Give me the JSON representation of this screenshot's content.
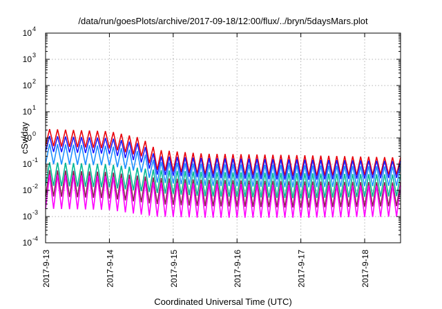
{
  "chart_data": {
    "type": "line",
    "title": "/data/run/goesPlots/archive/2017-09-18/12:00/flux/../bryn/5daysMars.plot",
    "xlabel": "Coordinated Universal Time (UTC)",
    "ylabel": "cSv/day",
    "y_scale": "log",
    "ylim": [
      0.0001,
      10000
    ],
    "xlim": [
      "2017-09-13",
      "2017-09-18T13:30"
    ],
    "grid": true,
    "legend": "none",
    "x_ticks": [
      {
        "label": "2017-9-13",
        "date": "2017-09-13"
      },
      {
        "label": "2017-9-14",
        "date": "2017-09-14"
      },
      {
        "label": "2017-9-15",
        "date": "2017-09-15"
      },
      {
        "label": "2017-9-16",
        "date": "2017-09-16"
      },
      {
        "label": "2017-9-17",
        "date": "2017-09-17"
      },
      {
        "label": "2017-9-18",
        "date": "2017-09-18"
      }
    ],
    "y_ticks": [
      {
        "base": "10",
        "exp": "-4",
        "value": 0.0001
      },
      {
        "base": "10",
        "exp": "-3",
        "value": 0.001
      },
      {
        "base": "10",
        "exp": "-2",
        "value": 0.01
      },
      {
        "base": "10",
        "exp": "-1",
        "value": 0.1
      },
      {
        "base": "10",
        "exp": "0",
        "value": 1
      },
      {
        "base": "10",
        "exp": "1",
        "value": 10
      },
      {
        "base": "10",
        "exp": "2",
        "value": 100
      },
      {
        "base": "10",
        "exp": "3",
        "value": 1000
      },
      {
        "base": "10",
        "exp": "4",
        "value": 10000
      }
    ],
    "oscillation_period_hours": 3.0,
    "series": [
      {
        "color": "#e8000b",
        "envelope": [
          {
            "x": "2017-09-13T00:00",
            "high": 2.2,
            "low": 0.5
          },
          {
            "x": "2017-09-14T00:00",
            "high": 1.8,
            "low": 0.4
          },
          {
            "x": "2017-09-14T12:00",
            "high": 1.0,
            "low": 0.2
          },
          {
            "x": "2017-09-14T18:00",
            "high": 0.35,
            "low": 0.06
          },
          {
            "x": "2017-09-15T12:00",
            "high": 0.25,
            "low": 0.04
          },
          {
            "x": "2017-09-17T00:00",
            "high": 0.22,
            "low": 0.035
          },
          {
            "x": "2017-09-18T13:30",
            "high": 0.18,
            "low": 0.04
          }
        ]
      },
      {
        "color": "#1a1aff",
        "envelope": [
          {
            "x": "2017-09-13T00:00",
            "high": 1.2,
            "low": 0.3
          },
          {
            "x": "2017-09-14T00:00",
            "high": 1.0,
            "low": 0.25
          },
          {
            "x": "2017-09-14T12:00",
            "high": 0.6,
            "low": 0.12
          },
          {
            "x": "2017-09-14T18:00",
            "high": 0.2,
            "low": 0.04
          },
          {
            "x": "2017-09-15T12:00",
            "high": 0.17,
            "low": 0.03
          },
          {
            "x": "2017-09-17T00:00",
            "high": 0.15,
            "low": 0.025
          },
          {
            "x": "2017-09-18T13:30",
            "high": 0.13,
            "low": 0.03
          }
        ]
      },
      {
        "color": "#1e90ff",
        "envelope": [
          {
            "x": "2017-09-13T00:00",
            "high": 0.6,
            "low": 0.1
          },
          {
            "x": "2017-09-14T00:00",
            "high": 0.5,
            "low": 0.09
          },
          {
            "x": "2017-09-14T12:00",
            "high": 0.3,
            "low": 0.05
          },
          {
            "x": "2017-09-14T18:00",
            "high": 0.12,
            "low": 0.02
          },
          {
            "x": "2017-09-15T12:00",
            "high": 0.1,
            "low": 0.015
          },
          {
            "x": "2017-09-17T00:00",
            "high": 0.09,
            "low": 0.013
          },
          {
            "x": "2017-09-18T13:30",
            "high": 0.08,
            "low": 0.015
          }
        ]
      },
      {
        "color": "#00b894",
        "envelope": [
          {
            "x": "2017-09-13T00:00",
            "high": 0.12,
            "low": 0.015
          },
          {
            "x": "2017-09-14T00:00",
            "high": 0.1,
            "low": 0.013
          },
          {
            "x": "2017-09-14T18:00",
            "high": 0.06,
            "low": 0.008
          },
          {
            "x": "2017-09-15T12:00",
            "high": 0.05,
            "low": 0.006
          },
          {
            "x": "2017-09-17T00:00",
            "high": 0.045,
            "low": 0.005
          },
          {
            "x": "2017-09-18T13:30",
            "high": 0.04,
            "low": 0.006
          }
        ]
      },
      {
        "color": "#8b2252",
        "envelope": [
          {
            "x": "2017-09-13T00:00",
            "high": 0.06,
            "low": 0.006
          },
          {
            "x": "2017-09-14T00:00",
            "high": 0.05,
            "low": 0.005
          },
          {
            "x": "2017-09-14T18:00",
            "high": 0.03,
            "low": 0.003
          },
          {
            "x": "2017-09-15T12:00",
            "high": 0.025,
            "low": 0.0025
          },
          {
            "x": "2017-09-17T00:00",
            "high": 0.022,
            "low": 0.0022
          },
          {
            "x": "2017-09-18T13:30",
            "high": 0.02,
            "low": 0.0025
          }
        ]
      },
      {
        "color": "#ff00ff",
        "envelope": [
          {
            "x": "2017-09-13T00:00",
            "high": 0.04,
            "low": 0.002
          },
          {
            "x": "2017-09-14T00:00",
            "high": 0.035,
            "low": 0.0018
          },
          {
            "x": "2017-09-14T18:00",
            "high": 0.02,
            "low": 0.001
          },
          {
            "x": "2017-09-15T12:00",
            "high": 0.018,
            "low": 0.0009
          },
          {
            "x": "2017-09-17T00:00",
            "high": 0.016,
            "low": 0.0009
          },
          {
            "x": "2017-09-18T13:30",
            "high": 0.015,
            "low": 0.001
          }
        ]
      }
    ]
  }
}
